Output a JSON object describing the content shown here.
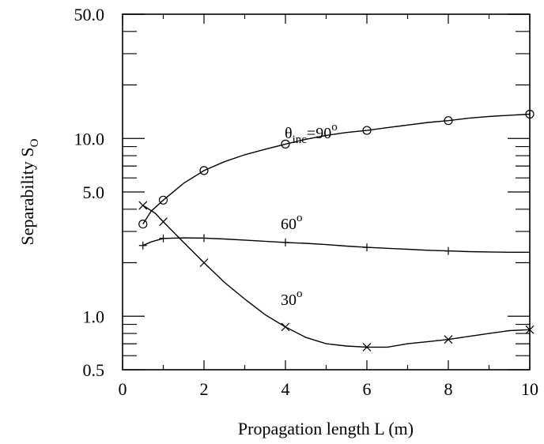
{
  "chart_data": {
    "type": "line",
    "xlabel": "Propagation length L (m)",
    "ylabel": {
      "main": "Separability S",
      "sub": "O"
    },
    "xlim": [
      0,
      10
    ],
    "ylim": [
      0.5,
      50
    ],
    "yscale": "log",
    "grid": false,
    "x_ticks": [
      0,
      2,
      4,
      6,
      8,
      10
    ],
    "x_tick_labels": [
      "0",
      "2",
      "4",
      "6",
      "8",
      "10"
    ],
    "y_ticks": [
      0.5,
      1,
      5,
      10,
      50
    ],
    "y_tick_labels": [
      "0.5",
      "1.0",
      "5.0",
      "10.0",
      "50.0"
    ],
    "series": [
      {
        "id": "s90",
        "marker": "circle",
        "label_parts": {
          "symbol": "θ",
          "sub": "inc",
          "eq": "=90",
          "sup": "o"
        },
        "line": [
          [
            0.5,
            3.3
          ],
          [
            0.7,
            3.9
          ],
          [
            1,
            4.5
          ],
          [
            1.5,
            5.6
          ],
          [
            2,
            6.6
          ],
          [
            2.5,
            7.4
          ],
          [
            3,
            8.1
          ],
          [
            3.5,
            8.7
          ],
          [
            4,
            9.3
          ],
          [
            4.5,
            9.9
          ],
          [
            5,
            10.4
          ],
          [
            5.5,
            10.8
          ],
          [
            6,
            11.1
          ],
          [
            6.5,
            11.5
          ],
          [
            7,
            11.9
          ],
          [
            7.5,
            12.3
          ],
          [
            8,
            12.6
          ],
          [
            8.5,
            13.0
          ],
          [
            9,
            13.3
          ],
          [
            9.5,
            13.5
          ],
          [
            10,
            13.7
          ]
        ],
        "points": [
          [
            0.5,
            3.3
          ],
          [
            1,
            4.5
          ],
          [
            2,
            6.6
          ],
          [
            4,
            9.3
          ],
          [
            6,
            11.1
          ],
          [
            8,
            12.6
          ],
          [
            10,
            13.7
          ]
        ]
      },
      {
        "id": "s60",
        "marker": "plus",
        "label_parts": {
          "main": "60",
          "sup": "o"
        },
        "line": [
          [
            0.5,
            2.5
          ],
          [
            0.7,
            2.62
          ],
          [
            1,
            2.74
          ],
          [
            1.5,
            2.76
          ],
          [
            2,
            2.75
          ],
          [
            2.5,
            2.72
          ],
          [
            3,
            2.68
          ],
          [
            3.5,
            2.64
          ],
          [
            4,
            2.6
          ],
          [
            4.5,
            2.57
          ],
          [
            5,
            2.53
          ],
          [
            5.5,
            2.48
          ],
          [
            6,
            2.44
          ],
          [
            6.5,
            2.41
          ],
          [
            7,
            2.38
          ],
          [
            7.5,
            2.35
          ],
          [
            8,
            2.33
          ],
          [
            8.5,
            2.31
          ],
          [
            9,
            2.3
          ],
          [
            9.5,
            2.29
          ],
          [
            10,
            2.29
          ]
        ],
        "points": [
          [
            0.5,
            2.5
          ],
          [
            1,
            2.74
          ],
          [
            2,
            2.75
          ],
          [
            4,
            2.6
          ],
          [
            6,
            2.44
          ],
          [
            8,
            2.33
          ]
        ]
      },
      {
        "id": "s30",
        "marker": "cross",
        "label_parts": {
          "main": "30",
          "sup": "o"
        },
        "line": [
          [
            0.5,
            4.2
          ],
          [
            0.8,
            3.8
          ],
          [
            1,
            3.4
          ],
          [
            1.5,
            2.6
          ],
          [
            2,
            2.0
          ],
          [
            2.5,
            1.55
          ],
          [
            3,
            1.25
          ],
          [
            3.5,
            1.02
          ],
          [
            4,
            0.87
          ],
          [
            4.5,
            0.76
          ],
          [
            5,
            0.7
          ],
          [
            5.5,
            0.68
          ],
          [
            6,
            0.67
          ],
          [
            6.5,
            0.67
          ],
          [
            7,
            0.7
          ],
          [
            7.5,
            0.72
          ],
          [
            8,
            0.74
          ],
          [
            8.5,
            0.77
          ],
          [
            9,
            0.8
          ],
          [
            9.5,
            0.83
          ],
          [
            10,
            0.84
          ]
        ],
        "points": [
          [
            0.5,
            4.2
          ],
          [
            1,
            3.4
          ],
          [
            2,
            2.0
          ],
          [
            4,
            0.87
          ],
          [
            6,
            0.67
          ],
          [
            8,
            0.74
          ],
          [
            10,
            0.84
          ]
        ]
      }
    ]
  }
}
